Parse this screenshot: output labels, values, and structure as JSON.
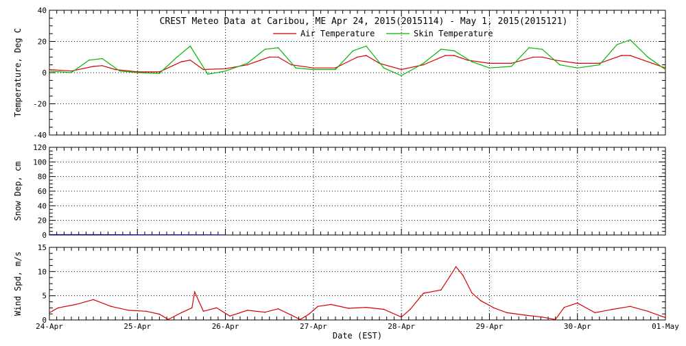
{
  "colors": {
    "background": "#ffffff",
    "axis": "#000000",
    "air_temperature": "#d40000",
    "skin_temperature": "#00b400",
    "snow_depth": "#00008b",
    "wind_speed": "#d40000"
  },
  "chart_data": [
    {
      "type": "line",
      "title": "CREST Meteo Data at Caribou, ME   Apr 24, 2015(2015114) - May  1, 2015(2015121)",
      "ylabel": "Temperature, Deg C",
      "ylim": [
        -40,
        40
      ],
      "yticks": [
        -40,
        -20,
        0,
        20,
        40
      ],
      "ytick_labels": [
        "-40",
        "-20",
        "0",
        "20",
        "40"
      ],
      "xlim_days": [
        0,
        7
      ],
      "grid": true,
      "legend_position": "top-center",
      "series": [
        {
          "name": "Air Temperature",
          "color": "#d40000",
          "x": [
            0,
            0.25,
            0.5,
            0.6,
            0.75,
            1,
            1.25,
            1.5,
            1.6,
            1.75,
            2,
            2.25,
            2.5,
            2.6,
            2.75,
            3,
            3.25,
            3.5,
            3.6,
            3.75,
            4,
            4.25,
            4.5,
            4.6,
            4.75,
            5,
            5.25,
            5.5,
            5.6,
            5.75,
            6,
            6.25,
            6.5,
            6.6,
            6.75,
            7
          ],
          "y": [
            2,
            1,
            4,
            4.5,
            2,
            0.5,
            0.5,
            7,
            8,
            2,
            2.5,
            5,
            10,
            10,
            5,
            3,
            3,
            10,
            11,
            6,
            2,
            5,
            11,
            11,
            8,
            6,
            6,
            10,
            10,
            8,
            6,
            6,
            11,
            11,
            8,
            3
          ]
        },
        {
          "name": "Skin Temperature",
          "color": "#00b400",
          "x": [
            0,
            0.25,
            0.45,
            0.6,
            0.8,
            1,
            1.25,
            1.45,
            1.6,
            1.8,
            2,
            2.25,
            2.45,
            2.6,
            2.8,
            3,
            3.25,
            3.45,
            3.6,
            3.8,
            4,
            4.25,
            4.45,
            4.6,
            4.8,
            5,
            5.25,
            5.45,
            5.6,
            5.8,
            6,
            6.25,
            6.45,
            6.6,
            6.8,
            7
          ],
          "y": [
            1,
            0,
            8,
            9,
            1,
            0,
            -0.5,
            10,
            17,
            -1,
            1,
            6,
            15,
            16,
            3,
            2,
            2,
            14,
            17,
            3,
            -2,
            6,
            15,
            14,
            7,
            3,
            4,
            16,
            15,
            5,
            3,
            5,
            18,
            21,
            10,
            2
          ]
        }
      ]
    },
    {
      "type": "line",
      "ylabel": "Snow Dep, cm",
      "ylim": [
        0,
        120
      ],
      "yticks": [
        0,
        20,
        40,
        60,
        80,
        100,
        120
      ],
      "ytick_labels": [
        "0",
        "20",
        "40",
        "60",
        "80",
        "100",
        "120"
      ],
      "xlim_days": [
        0,
        7
      ],
      "grid": true,
      "series": [
        {
          "color": "#00008b",
          "x": [
            0,
            0.5,
            1,
            1.5,
            2
          ],
          "y": [
            0.5,
            0.5,
            0.3,
            0.3,
            0.2
          ]
        }
      ]
    },
    {
      "type": "line",
      "ylabel": "Wind Spd, m/s",
      "xlabel": "Date (EST)",
      "ylim": [
        0,
        15
      ],
      "yticks": [
        0,
        5,
        10,
        15
      ],
      "ytick_labels": [
        "0",
        "5",
        "10",
        "15"
      ],
      "xlim_days": [
        0,
        7
      ],
      "x_tick_labels": [
        "24-Apr",
        "25-Apr",
        "26-Apr",
        "27-Apr",
        "28-Apr",
        "29-Apr",
        "30-Apr",
        "01-May"
      ],
      "grid": true,
      "series": [
        {
          "color": "#d40000",
          "x": [
            0,
            0.1,
            0.3,
            0.5,
            0.7,
            0.9,
            1.1,
            1.25,
            1.35,
            1.5,
            1.62,
            1.65,
            1.75,
            1.9,
            2.05,
            2.25,
            2.45,
            2.6,
            2.75,
            2.85,
            2.95,
            3.05,
            3.2,
            3.4,
            3.6,
            3.8,
            4.0,
            4.1,
            4.25,
            4.45,
            4.55,
            4.62,
            4.7,
            4.8,
            4.9,
            5.05,
            5.2,
            5.4,
            5.6,
            5.75,
            5.85,
            6.0,
            6.2,
            6.4,
            6.6,
            6.8,
            6.95,
            7.0
          ],
          "y": [
            1.5,
            2.5,
            3.2,
            4.2,
            2.8,
            2.0,
            1.8,
            1.2,
            0.1,
            1.5,
            2.5,
            5.8,
            1.8,
            2.5,
            0.8,
            2.0,
            1.6,
            2.3,
            1.0,
            0.1,
            1.2,
            2.8,
            3.2,
            2.4,
            2.6,
            2.2,
            0.6,
            2.2,
            5.5,
            6.2,
            9.0,
            11.0,
            9.2,
            5.6,
            4.0,
            2.5,
            1.5,
            1.0,
            0.6,
            0.1,
            2.6,
            3.5,
            1.5,
            2.2,
            2.8,
            1.8,
            0.8,
            0.5
          ]
        }
      ]
    }
  ]
}
